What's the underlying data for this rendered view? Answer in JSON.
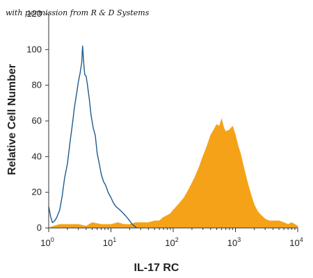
{
  "watermark": "with permission from R & D Systems",
  "chart_data": {
    "type": "area",
    "xlabel": "IL-17 RC",
    "ylabel": "Relative Cell Number",
    "xscale": "log",
    "xlim": [
      1,
      10000
    ],
    "ylim": [
      0,
      120
    ],
    "yticks": [
      0,
      20,
      40,
      60,
      80,
      100,
      120
    ],
    "xticks": [
      {
        "value": 1,
        "base": "10",
        "exp": "0"
      },
      {
        "value": 10,
        "base": "10",
        "exp": "1"
      },
      {
        "value": 100,
        "base": "10",
        "exp": "2"
      },
      {
        "value": 1000,
        "base": "10",
        "exp": "3"
      },
      {
        "value": 10000,
        "base": "10",
        "exp": "4"
      }
    ],
    "grid": false,
    "legend": "none",
    "series": [
      {
        "style": "outline",
        "color": "#1f5a8c",
        "x": [
          1,
          1.08,
          1.15,
          1.25,
          1.35,
          1.5,
          1.65,
          1.8,
          2.0,
          2.2,
          2.4,
          2.6,
          2.8,
          3.0,
          3.2,
          3.4,
          3.5,
          3.6,
          3.7,
          3.8,
          4.0,
          4.2,
          4.5,
          4.8,
          5.2,
          5.6,
          6.0,
          6.5,
          7.0,
          7.6,
          8.2,
          9.0,
          10,
          11,
          12,
          13,
          14,
          15,
          16,
          17,
          18,
          19,
          20,
          21,
          22,
          24,
          26
        ],
        "y": [
          12,
          6,
          3,
          4,
          6,
          10,
          18,
          28,
          36,
          48,
          58,
          68,
          75,
          82,
          87,
          93,
          102,
          96,
          90,
          86,
          85,
          80,
          72,
          63,
          56,
          52,
          42,
          36,
          30,
          26,
          24,
          20,
          17,
          14,
          12,
          11,
          10,
          9,
          8,
          7,
          6,
          5,
          4,
          3,
          2,
          1,
          0
        ]
      },
      {
        "style": "filled",
        "color": "#f5a219",
        "x": [
          1,
          1.2,
          1.5,
          2,
          3,
          4,
          5,
          7,
          10,
          13,
          16,
          20,
          25,
          30,
          35,
          40,
          50,
          60,
          70,
          80,
          90,
          100,
          120,
          150,
          180,
          220,
          260,
          300,
          350,
          400,
          450,
          500,
          550,
          600,
          650,
          700,
          800,
          900,
          1000,
          1100,
          1200,
          1400,
          1600,
          1800,
          2000,
          2300,
          2600,
          3000,
          3500,
          4000,
          5000,
          6000,
          7000,
          8000,
          9000,
          10000
        ],
        "y": [
          0,
          1,
          2,
          2,
          2,
          1,
          3,
          2,
          2,
          3,
          2,
          2,
          3,
          3,
          3,
          3,
          4,
          4,
          6,
          7,
          8,
          10,
          13,
          17,
          22,
          28,
          34,
          40,
          46,
          52,
          55,
          58,
          57,
          61,
          56,
          54,
          55,
          57,
          52,
          46,
          42,
          32,
          24,
          18,
          13,
          9,
          7,
          5,
          4,
          4,
          4,
          3,
          2,
          3,
          2,
          1
        ]
      }
    ]
  }
}
